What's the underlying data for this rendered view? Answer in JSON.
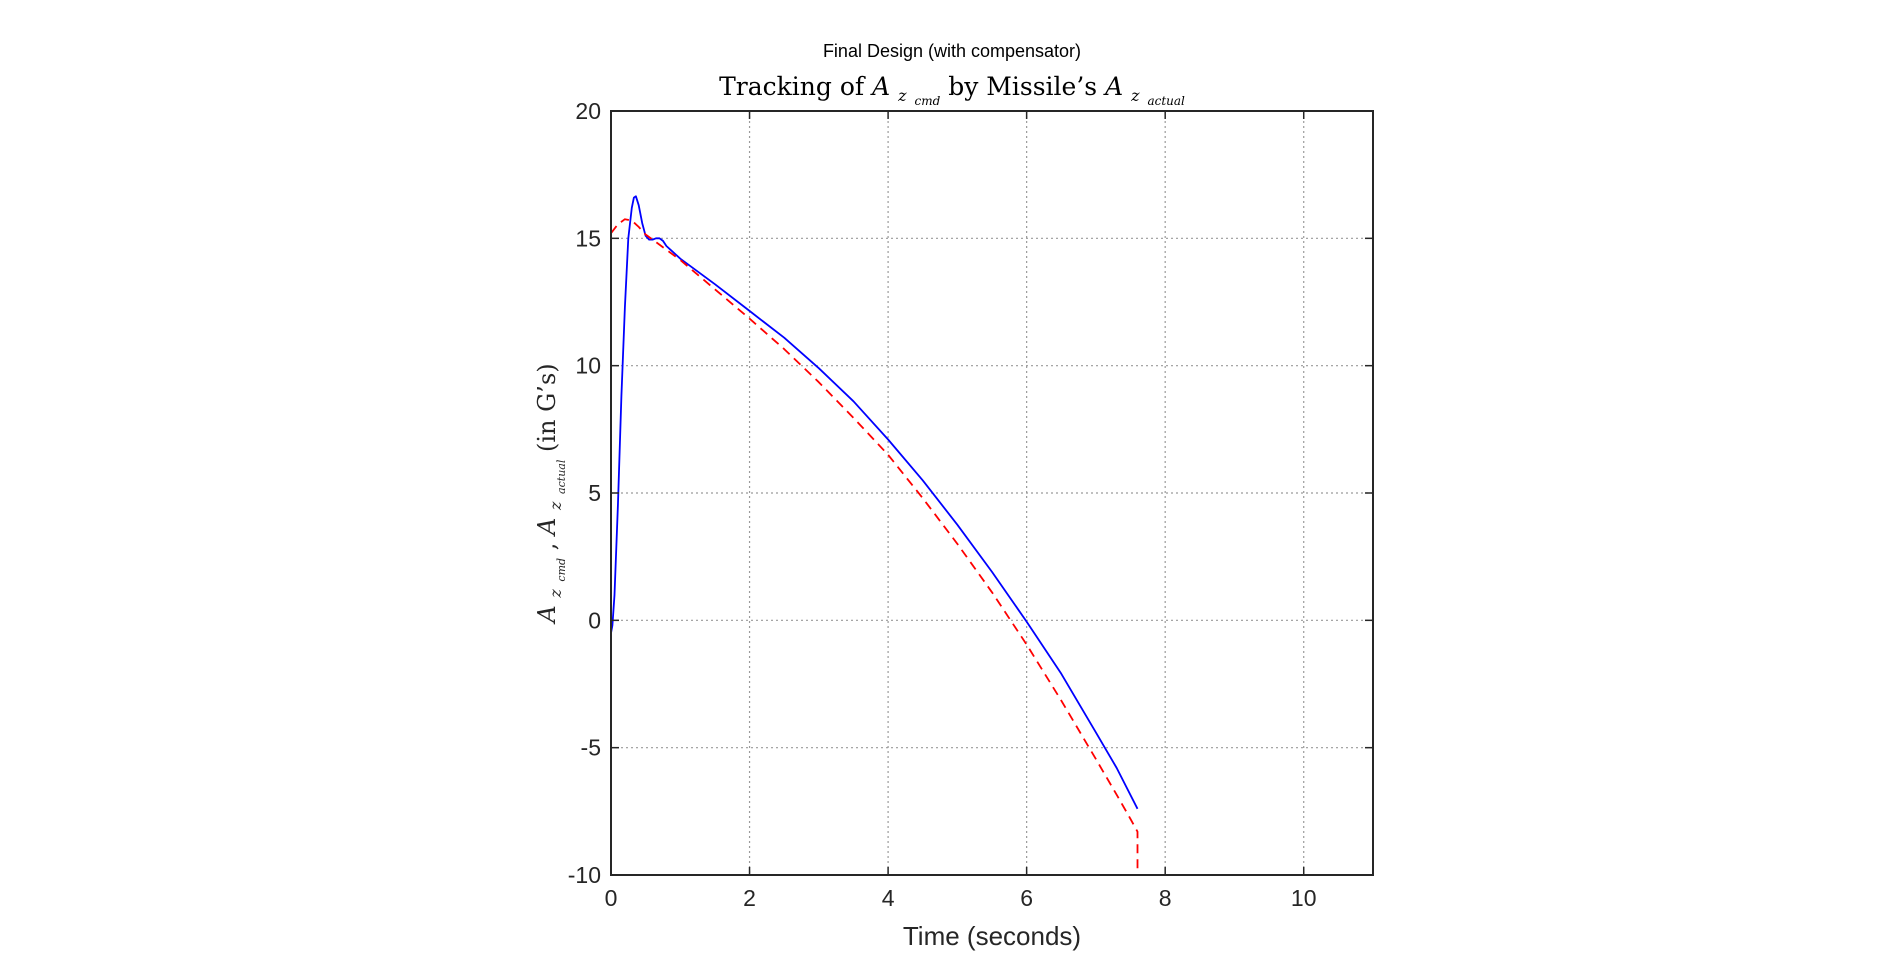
{
  "figure": {
    "suptitle": "Final Design (with compensator)"
  },
  "chart_data": {
    "type": "line",
    "title": {
      "prefix": "Tracking of ",
      "var1_base": "A",
      "var1_sub": "z",
      "var1_subsub": "cmd",
      "middle": " by Missile’s ",
      "var2_base": "A",
      "var2_sub": "z",
      "var2_subsub": "actual"
    },
    "xlabel": "Time (seconds)",
    "ylabel": {
      "var1_base": "A",
      "var1_sub": "z",
      "var1_subsub": "cmd",
      "sep": ",",
      "var2_base": "A",
      "var2_sub": "z",
      "var2_subsub": "actual",
      "suffix": " (in G’s)"
    },
    "xlim": [
      0,
      11
    ],
    "ylim": [
      -10,
      20
    ],
    "xticks": [
      0,
      2,
      4,
      6,
      8,
      10
    ],
    "yticks": [
      -10,
      -5,
      0,
      5,
      10,
      15,
      20
    ],
    "xtick_labels": [
      "0",
      "2",
      "4",
      "6",
      "8",
      "10"
    ],
    "ytick_labels": [
      "-10",
      "-5",
      "0",
      "5",
      "10",
      "15",
      "20"
    ],
    "grid": true,
    "grid_style": "dotted",
    "series": [
      {
        "color": "#0000ff",
        "style": "solid",
        "x": [
          0,
          0.02,
          0.05,
          0.1,
          0.15,
          0.2,
          0.25,
          0.3,
          0.33,
          0.36,
          0.4,
          0.45,
          0.5,
          0.55,
          0.6,
          0.65,
          0.7,
          0.75,
          0.8,
          0.9,
          1.0,
          1.5,
          2.0,
          2.5,
          3.0,
          3.5,
          4.0,
          4.5,
          5.0,
          5.5,
          6.0,
          6.5,
          7.0,
          7.3,
          7.6
        ],
        "y": [
          -0.5,
          -0.2,
          1.0,
          4.5,
          8.8,
          12.3,
          15.0,
          16.2,
          16.6,
          16.65,
          16.3,
          15.6,
          15.1,
          14.95,
          14.95,
          15.0,
          15.0,
          14.9,
          14.7,
          14.45,
          14.2,
          13.2,
          12.15,
          11.1,
          9.9,
          8.6,
          7.1,
          5.5,
          3.75,
          1.9,
          -0.05,
          -2.1,
          -4.4,
          -5.8,
          -7.4
        ]
      },
      {
        "color": "#ff0000",
        "style": "dashed",
        "x": [
          0,
          0.1,
          0.2,
          0.3,
          0.4,
          0.5,
          0.6,
          0.8,
          1.0,
          1.5,
          2.0,
          2.5,
          3.0,
          3.5,
          4.0,
          4.5,
          5.0,
          5.5,
          6.0,
          6.5,
          7.0,
          7.3,
          7.5,
          7.6,
          7.6
        ],
        "y": [
          15.2,
          15.55,
          15.75,
          15.7,
          15.45,
          15.15,
          14.95,
          14.55,
          14.15,
          13.0,
          11.85,
          10.65,
          9.35,
          7.95,
          6.5,
          4.8,
          3.0,
          1.1,
          -0.95,
          -3.15,
          -5.45,
          -6.85,
          -7.8,
          -8.3,
          -10.0
        ]
      }
    ]
  },
  "colors": {
    "axis": "#262626",
    "grid": "#9a9a9a",
    "background": "#ffffff"
  }
}
